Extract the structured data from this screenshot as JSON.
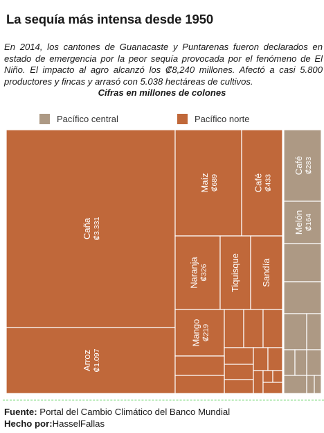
{
  "title": "La sequía más intensa desde 1950",
  "description": "En 2014, los cantones de Guanacaste y Puntarenas fueron declarados en estado de emergencia por la peor sequía provocada por el fenómeno de El Niño. El impacto al agro alcanzó los ₡8,240 millones. Afectó a casi 5.800 productores y fincas y arrasó con 5.038 hectáreas de cultivos.",
  "unit_label": "Cifras en millones de colones",
  "footer": {
    "source_label": "Fuente:",
    "source_value": " Portal del Cambio Climático del Banco Mundial",
    "author_label": "Hecho por:",
    "author_value": "HasselFallas"
  },
  "colors": {
    "pacifico_central": "#ad9984",
    "pacifico_norte": "#c0683a"
  },
  "chart_data": {
    "type": "treemap",
    "legend": [
      {
        "name": "Pacífico central",
        "color": "#ad9984"
      },
      {
        "name": "Pacífico norte",
        "color": "#c0683a"
      }
    ],
    "legend_position": "top",
    "series": [
      {
        "name": "Pacífico norte",
        "items": [
          {
            "label": "Caña",
            "value": 3331,
            "value_label": "₡3.331"
          },
          {
            "label": "Arroz",
            "value": 1097,
            "value_label": "₡1.097"
          },
          {
            "label": "Maíz",
            "value": 689,
            "value_label": "₡689"
          },
          {
            "label": "Café",
            "value": 433,
            "value_label": "₡433"
          },
          {
            "label": "Naranja",
            "value": 326,
            "value_label": "₡326"
          },
          {
            "label": "Tiquisque",
            "value": null,
            "value_label": ""
          },
          {
            "label": "Sandía",
            "value": null,
            "value_label": ""
          },
          {
            "label": "Mango",
            "value": 219,
            "value_label": "₡219"
          }
        ]
      },
      {
        "name": "Pacífico central",
        "items": [
          {
            "label": "Café",
            "value": 283,
            "value_label": "₡283"
          },
          {
            "label": "Melón",
            "value": 164,
            "value_label": "₡164"
          }
        ]
      }
    ]
  }
}
